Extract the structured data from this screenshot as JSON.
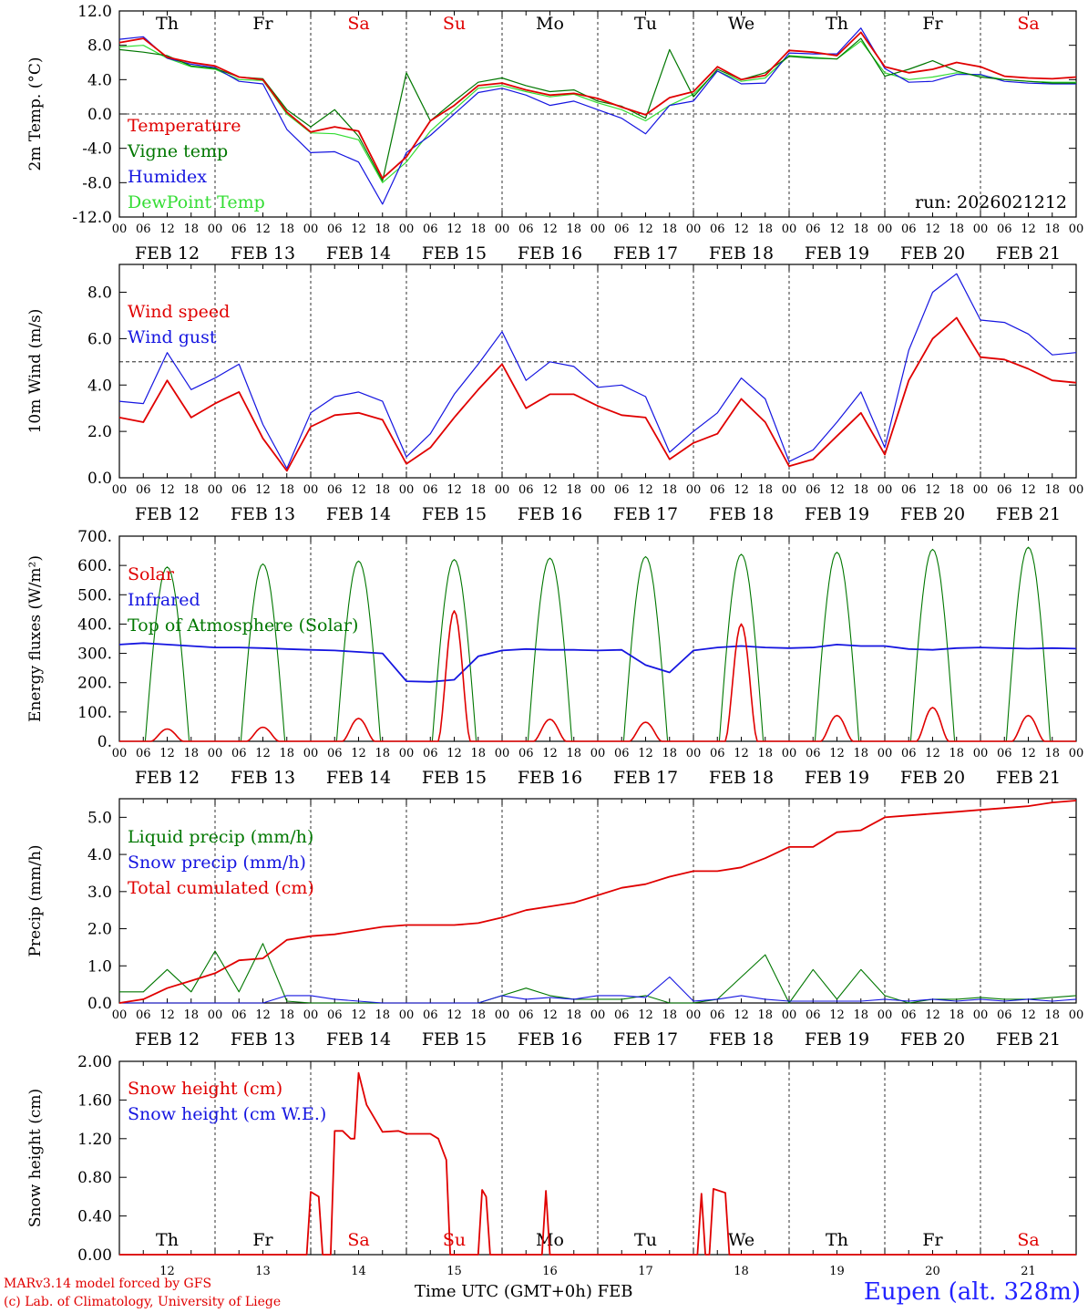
{
  "colors": {
    "red": "#e00000",
    "green": "#007700",
    "blue": "#1515e0",
    "lightgreen": "#33dd33",
    "axis": "#000000"
  },
  "hour_ticks": [
    "00",
    "06",
    "12",
    "18"
  ],
  "day_names": [
    {
      "label": "Th",
      "weekend": false
    },
    {
      "label": "Fr",
      "weekend": false
    },
    {
      "label": "Sa",
      "weekend": true
    },
    {
      "label": "Su",
      "weekend": true
    },
    {
      "label": "Mo",
      "weekend": false
    },
    {
      "label": "Tu",
      "weekend": false
    },
    {
      "label": "We",
      "weekend": false
    },
    {
      "label": "Th",
      "weekend": false
    },
    {
      "label": "Fr",
      "weekend": false
    },
    {
      "label": "Sa",
      "weekend": true
    }
  ],
  "date_labels": [
    "FEB 12",
    "FEB 13",
    "FEB 14",
    "FEB 15",
    "FEB 16",
    "FEB 17",
    "FEB 18",
    "FEB 19",
    "FEB 20",
    "FEB 21"
  ],
  "day_numbers": [
    "12",
    "13",
    "14",
    "15",
    "16",
    "17",
    "18",
    "19",
    "20",
    "21"
  ],
  "footer": {
    "model": "MARv3.14 model forced by GFS",
    "lab": "(c) Lab. of Climatology, University of Liege",
    "time_axis": "Time UTC (GMT+0h) FEB",
    "station": "Eupen (alt. 328m)"
  },
  "chart_data": [
    {
      "id": "temperature",
      "type": "line",
      "ylabel": "2m Temp. (°C)",
      "ylim": [
        -12,
        12
      ],
      "yticks": [
        "12.0",
        "8.0",
        "4.0",
        "0.0",
        "-4.0",
        "-8.0",
        "-12.0"
      ],
      "ytick_values": [
        12,
        8,
        4,
        0,
        -4,
        -8,
        -12
      ],
      "reference_line": 0,
      "run_label": "run: 2026021212",
      "x_hours": [
        0,
        6,
        12,
        18,
        24,
        30,
        36,
        42,
        48,
        54,
        60,
        66,
        72,
        78,
        84,
        90,
        96,
        102,
        108,
        114,
        120,
        126,
        132,
        138,
        144,
        150,
        156,
        162,
        168,
        174,
        180,
        186,
        192,
        198,
        204,
        210,
        216,
        222,
        228,
        234,
        240
      ],
      "series": [
        {
          "name": "Temperature",
          "color": "red",
          "values": [
            8.3,
            8.8,
            6.6,
            6.0,
            5.6,
            4.3,
            4.0,
            0.2,
            -2.1,
            -1.5,
            -2.0,
            -7.5,
            -5.0,
            -0.8,
            1.0,
            3.3,
            3.6,
            2.8,
            2.2,
            2.4,
            1.8,
            0.8,
            -0.1,
            1.9,
            2.6,
            5.5,
            4.0,
            4.5,
            7.4,
            7.2,
            6.8,
            9.5,
            5.5,
            4.8,
            5.2,
            6.0,
            5.5,
            4.4,
            4.2,
            4.1,
            4.3
          ]
        },
        {
          "name": "Vigne temp",
          "color": "green",
          "values": [
            7.5,
            7.2,
            6.8,
            5.6,
            5.3,
            4.3,
            4.1,
            0.5,
            -1.5,
            0.5,
            -2.6,
            -7.8,
            4.8,
            -0.8,
            1.5,
            3.7,
            4.2,
            3.3,
            2.6,
            2.8,
            1.5,
            0.9,
            -0.5,
            7.5,
            2.0,
            5.2,
            4.0,
            4.8,
            6.7,
            6.5,
            6.4,
            8.8,
            4.4,
            5.2,
            6.2,
            5.0,
            4.3,
            4.0,
            3.8,
            3.6,
            3.6
          ]
        },
        {
          "name": "Humidex",
          "color": "blue",
          "values": [
            8.7,
            9.0,
            6.5,
            5.8,
            5.4,
            3.8,
            3.5,
            -1.8,
            -4.5,
            -4.4,
            -5.6,
            -10.5,
            -4.5,
            -2.5,
            0.0,
            2.5,
            3.0,
            2.2,
            1.0,
            1.5,
            0.5,
            -0.5,
            -2.3,
            1.0,
            1.5,
            5.0,
            3.5,
            3.6,
            7.1,
            7.0,
            7.0,
            10.0,
            5.3,
            3.7,
            3.8,
            4.6,
            4.6,
            3.8,
            3.6,
            3.5,
            3.5
          ]
        },
        {
          "name": "DewPoint Temp",
          "color": "lightgreen",
          "values": [
            7.8,
            8.0,
            6.5,
            5.5,
            5.2,
            4.0,
            3.9,
            0.0,
            -2.2,
            -2.3,
            -3.0,
            -8.0,
            -5.6,
            -2.0,
            0.5,
            3.0,
            3.3,
            2.6,
            2.0,
            2.3,
            1.3,
            0.5,
            -0.8,
            1.0,
            2.3,
            5.0,
            3.8,
            4.2,
            6.8,
            6.6,
            6.4,
            8.5,
            4.8,
            4.0,
            4.3,
            4.8,
            4.5,
            4.0,
            3.8,
            3.7,
            3.7
          ]
        }
      ]
    },
    {
      "id": "wind",
      "type": "line",
      "ylabel": "10m Wind (m/s)",
      "ylim": [
        0,
        9.2
      ],
      "yticks": [
        "8.0",
        "6.0",
        "4.0",
        "2.0",
        "0.0"
      ],
      "ytick_values": [
        8,
        6,
        4,
        2,
        0
      ],
      "reference_line": 5,
      "x_hours": [
        0,
        6,
        12,
        18,
        24,
        30,
        36,
        42,
        48,
        54,
        60,
        66,
        72,
        78,
        84,
        90,
        96,
        102,
        108,
        114,
        120,
        126,
        132,
        138,
        144,
        150,
        156,
        162,
        168,
        174,
        180,
        186,
        192,
        198,
        204,
        210,
        216,
        222,
        228,
        234,
        240
      ],
      "series": [
        {
          "name": "Wind speed",
          "color": "red",
          "values": [
            2.6,
            2.4,
            4.2,
            2.6,
            3.2,
            3.7,
            1.7,
            0.3,
            2.2,
            2.7,
            2.8,
            2.5,
            0.6,
            1.3,
            2.6,
            3.8,
            4.9,
            3.0,
            3.6,
            3.6,
            3.1,
            2.7,
            2.6,
            0.8,
            1.5,
            1.9,
            3.4,
            2.4,
            0.5,
            0.8,
            1.8,
            2.8,
            1.0,
            4.2,
            6.0,
            6.9,
            5.2,
            5.1,
            4.7,
            4.2,
            4.1
          ]
        },
        {
          "name": "Wind gust",
          "color": "blue",
          "values": [
            3.3,
            3.2,
            5.4,
            3.8,
            4.3,
            4.9,
            2.3,
            0.4,
            2.8,
            3.5,
            3.7,
            3.3,
            0.9,
            1.9,
            3.6,
            4.9,
            6.3,
            4.2,
            5.0,
            4.8,
            3.9,
            4.0,
            3.5,
            1.1,
            2.0,
            2.8,
            4.3,
            3.4,
            0.7,
            1.2,
            2.4,
            3.7,
            1.3,
            5.5,
            8.0,
            8.8,
            6.8,
            6.7,
            6.2,
            5.3,
            5.4
          ]
        }
      ]
    },
    {
      "id": "energy",
      "type": "line",
      "ylabel": "Energy fluxes (W/m²)",
      "ylim": [
        0,
        700
      ],
      "yticks": [
        "700.",
        "600.",
        "500.",
        "400.",
        "300.",
        "200.",
        "100.",
        "0."
      ],
      "ytick_values": [
        700,
        600,
        500,
        400,
        300,
        200,
        100,
        0
      ],
      "day_peaks": {
        "top_of_atmosphere": [
          595,
          605,
          615,
          620,
          625,
          630,
          638,
          645,
          655,
          662
        ],
        "solar": [
          42,
          48,
          78,
          445,
          75,
          65,
          400,
          88,
          115,
          88
        ]
      },
      "infrared_hourly": [
        330,
        335,
        330,
        325,
        320,
        320,
        318,
        315,
        312,
        310,
        305,
        300,
        205,
        203,
        210,
        290,
        310,
        315,
        312,
        312,
        310,
        312,
        260,
        235,
        310,
        320,
        325,
        320,
        318,
        320,
        330,
        325,
        325,
        315,
        312,
        318,
        320,
        318,
        316,
        318,
        316
      ],
      "series": [
        {
          "name": "Solar",
          "color": "red"
        },
        {
          "name": "Infrared",
          "color": "blue"
        },
        {
          "name": "Top of Atmosphere (Solar)",
          "color": "green"
        }
      ]
    },
    {
      "id": "precip",
      "type": "line",
      "ylabel": "Precip (mm/h)",
      "ylim": [
        0,
        5.5
      ],
      "yticks": [
        "5.0",
        "4.0",
        "3.0",
        "2.0",
        "1.0",
        "0.0"
      ],
      "ytick_values": [
        5,
        4,
        3,
        2,
        1,
        0
      ],
      "x_hours": [
        0,
        6,
        12,
        18,
        24,
        30,
        36,
        42,
        48,
        54,
        60,
        66,
        72,
        78,
        84,
        90,
        96,
        102,
        108,
        114,
        120,
        126,
        132,
        138,
        144,
        150,
        156,
        162,
        168,
        174,
        180,
        186,
        192,
        198,
        204,
        210,
        216,
        222,
        228,
        234,
        240
      ],
      "series": [
        {
          "name": "Liquid precip (mm/h)",
          "color": "green",
          "values": [
            0.3,
            0.3,
            0.9,
            0.3,
            1.4,
            0.3,
            1.6,
            0.05,
            0.0,
            0.0,
            0.0,
            0.0,
            0.0,
            0.0,
            0.0,
            0.0,
            0.2,
            0.4,
            0.2,
            0.1,
            0.1,
            0.1,
            0.2,
            0.0,
            0.0,
            0.1,
            0.7,
            1.3,
            0.0,
            0.9,
            0.1,
            0.9,
            0.2,
            0.0,
            0.1,
            0.1,
            0.15,
            0.1,
            0.1,
            0.15,
            0.2
          ]
        },
        {
          "name": "Snow precip (mm/h)",
          "color": "blue",
          "values": [
            0.0,
            0.0,
            0.0,
            0.0,
            0.0,
            0.0,
            0.0,
            0.2,
            0.2,
            0.1,
            0.05,
            0.0,
            0.0,
            0.0,
            0.0,
            0.0,
            0.2,
            0.1,
            0.15,
            0.1,
            0.2,
            0.2,
            0.15,
            0.7,
            0.05,
            0.1,
            0.2,
            0.1,
            0.05,
            0.05,
            0.05,
            0.05,
            0.1,
            0.05,
            0.1,
            0.05,
            0.1,
            0.05,
            0.1,
            0.05,
            0.1
          ]
        },
        {
          "name": "Total cumulated (cm)",
          "color": "red",
          "values": [
            0.0,
            0.1,
            0.4,
            0.6,
            0.8,
            1.15,
            1.2,
            1.7,
            1.8,
            1.85,
            1.95,
            2.05,
            2.1,
            2.1,
            2.1,
            2.15,
            2.3,
            2.5,
            2.6,
            2.7,
            2.9,
            3.1,
            3.2,
            3.4,
            3.55,
            3.55,
            3.65,
            3.9,
            4.2,
            4.2,
            4.6,
            4.65,
            5.0,
            5.05,
            5.1,
            5.15,
            5.2,
            5.25,
            5.3,
            5.4,
            5.45
          ]
        }
      ]
    },
    {
      "id": "snow",
      "type": "line",
      "ylabel": "Snow height (cm)",
      "ylim": [
        0,
        2.0
      ],
      "yticks": [
        "2.00",
        "1.60",
        "1.20",
        "0.80",
        "0.40",
        "0.00"
      ],
      "ytick_values": [
        2.0,
        1.6,
        1.2,
        0.8,
        0.4,
        0.0
      ],
      "points": [
        [
          0,
          0
        ],
        [
          47,
          0
        ],
        [
          48,
          0.65
        ],
        [
          50,
          0.6
        ],
        [
          51,
          0
        ],
        [
          53,
          0
        ],
        [
          54,
          1.28
        ],
        [
          56,
          1.28
        ],
        [
          58,
          1.2
        ],
        [
          59,
          1.2
        ],
        [
          60,
          1.88
        ],
        [
          62,
          1.55
        ],
        [
          66,
          1.27
        ],
        [
          70,
          1.28
        ],
        [
          72,
          1.25
        ],
        [
          78,
          1.25
        ],
        [
          80,
          1.2
        ],
        [
          82,
          0.98
        ],
        [
          83,
          0
        ],
        [
          90,
          0
        ],
        [
          91,
          0.67
        ],
        [
          92,
          0.6
        ],
        [
          93,
          0
        ],
        [
          106,
          0
        ],
        [
          107,
          0.66
        ],
        [
          108,
          0
        ],
        [
          145,
          0
        ],
        [
          146,
          0.63
        ],
        [
          147,
          0
        ],
        [
          148,
          0
        ],
        [
          149,
          0.68
        ],
        [
          152,
          0.64
        ],
        [
          153,
          0
        ],
        [
          240,
          0
        ]
      ],
      "series": [
        {
          "name": "Snow height (cm)",
          "color": "red"
        },
        {
          "name": "Snow height (cm W.E.)",
          "color": "blue"
        }
      ]
    }
  ]
}
